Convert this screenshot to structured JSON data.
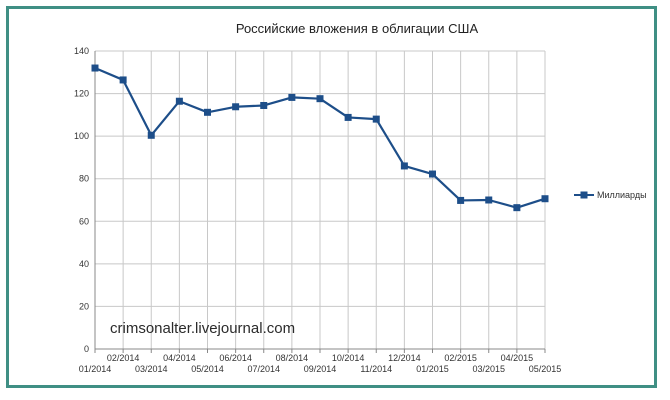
{
  "chart_data": {
    "type": "line",
    "title": "Российские вложения в облигации США",
    "xlabel": "",
    "ylabel": "",
    "categories": [
      "01/2014",
      "02/2014",
      "03/2014",
      "04/2014",
      "05/2014",
      "06/2014",
      "07/2014",
      "08/2014",
      "09/2014",
      "10/2014",
      "11/2014",
      "12/2014",
      "01/2015",
      "02/2015",
      "03/2015",
      "04/2015",
      "05/2015"
    ],
    "series": [
      {
        "name": "Миллиарды",
        "values": [
          132,
          126.4,
          100.4,
          116.4,
          111.2,
          113.8,
          114.4,
          118.2,
          117.6,
          108.8,
          108,
          86,
          82.2,
          69.8,
          70,
          66.4,
          70.6
        ]
      }
    ],
    "ylim": [
      0,
      140
    ],
    "yticks": [
      "0",
      "20",
      "40",
      "60",
      "80",
      "100",
      "120",
      "140"
    ],
    "grid": true,
    "legend_position": "right",
    "colors": {
      "series": "#1d4e89",
      "grid": "#c8c8c8",
      "frame": "#3f8f84"
    },
    "annotation": "crimsonalter.livejournal.com"
  }
}
